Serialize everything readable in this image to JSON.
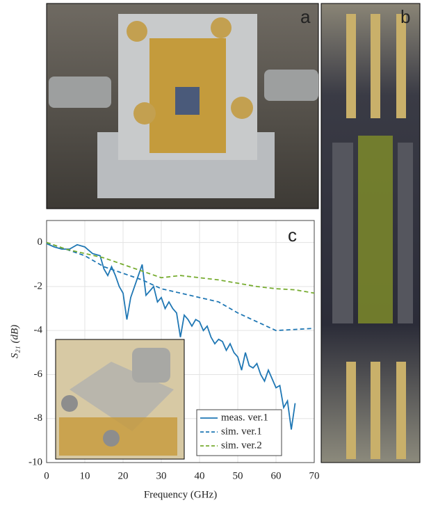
{
  "panels": {
    "a": "a",
    "b": "b",
    "c": "c"
  },
  "chart_data": {
    "type": "line",
    "xlabel": "Frequency (GHz)",
    "ylabel": "S₂₁ (dB)",
    "xlim": [
      0,
      70
    ],
    "xticks": [
      0,
      10,
      20,
      30,
      40,
      50,
      60,
      70
    ],
    "ylim": [
      -10,
      1
    ],
    "yticks": [
      -10,
      -8,
      -6,
      -4,
      -2,
      0
    ],
    "grid": true,
    "legend": "lower right",
    "series": [
      {
        "name": "meas. ver.1",
        "color": "#1f77b4",
        "style": "solid",
        "x": [
          0,
          2,
          4,
          6,
          8,
          10,
          12,
          14,
          15,
          16,
          17,
          18,
          19,
          20,
          21,
          22,
          23,
          24,
          25,
          26,
          27,
          28,
          29,
          30,
          31,
          32,
          33,
          34,
          35,
          36,
          37,
          38,
          39,
          40,
          41,
          42,
          43,
          44,
          45,
          46,
          47,
          48,
          49,
          50,
          51,
          52,
          53,
          54,
          55,
          56,
          57,
          58,
          59,
          60,
          61,
          62,
          63,
          64,
          65
        ],
        "values": [
          -0.05,
          -0.2,
          -0.3,
          -0.3,
          -0.1,
          -0.2,
          -0.5,
          -0.6,
          -1.2,
          -1.5,
          -1.1,
          -1.5,
          -2,
          -2.3,
          -3.5,
          -2.5,
          -2,
          -1.5,
          -1,
          -2.4,
          -2.2,
          -2,
          -2.7,
          -2.5,
          -3,
          -2.7,
          -3,
          -3.2,
          -4.3,
          -3.3,
          -3.5,
          -3.8,
          -3.5,
          -3.6,
          -4,
          -3.8,
          -4.3,
          -4.6,
          -4.4,
          -4.5,
          -4.9,
          -4.6,
          -5,
          -5.2,
          -5.8,
          -5,
          -5.6,
          -5.7,
          -5.5,
          -6,
          -6.3,
          -5.8,
          -6.2,
          -6.6,
          -6.5,
          -7.5,
          -7.2,
          -8.5,
          -7.3
        ]
      },
      {
        "name": "sim. ver.1",
        "color": "#1f77b4",
        "style": "dashed",
        "x": [
          0,
          5,
          10,
          13,
          15,
          20,
          25,
          30,
          35,
          40,
          45,
          50,
          55,
          60,
          65,
          70
        ],
        "values": [
          0,
          -0.3,
          -0.6,
          -0.9,
          -1.1,
          -1.4,
          -1.7,
          -2.1,
          -2.3,
          -2.5,
          -2.7,
          -3.2,
          -3.6,
          -4,
          -3.95,
          -3.9
        ]
      },
      {
        "name": "sim. ver.2",
        "color": "#77ac30",
        "style": "dashed",
        "x": [
          0,
          5,
          10,
          15,
          20,
          25,
          30,
          35,
          40,
          45,
          50,
          55,
          60,
          65,
          70
        ],
        "values": [
          0,
          -0.3,
          -0.5,
          -0.7,
          -1,
          -1.3,
          -1.6,
          -1.5,
          -1.6,
          -1.7,
          -1.85,
          -2,
          -2.1,
          -2.15,
          -2.3
        ]
      }
    ]
  }
}
